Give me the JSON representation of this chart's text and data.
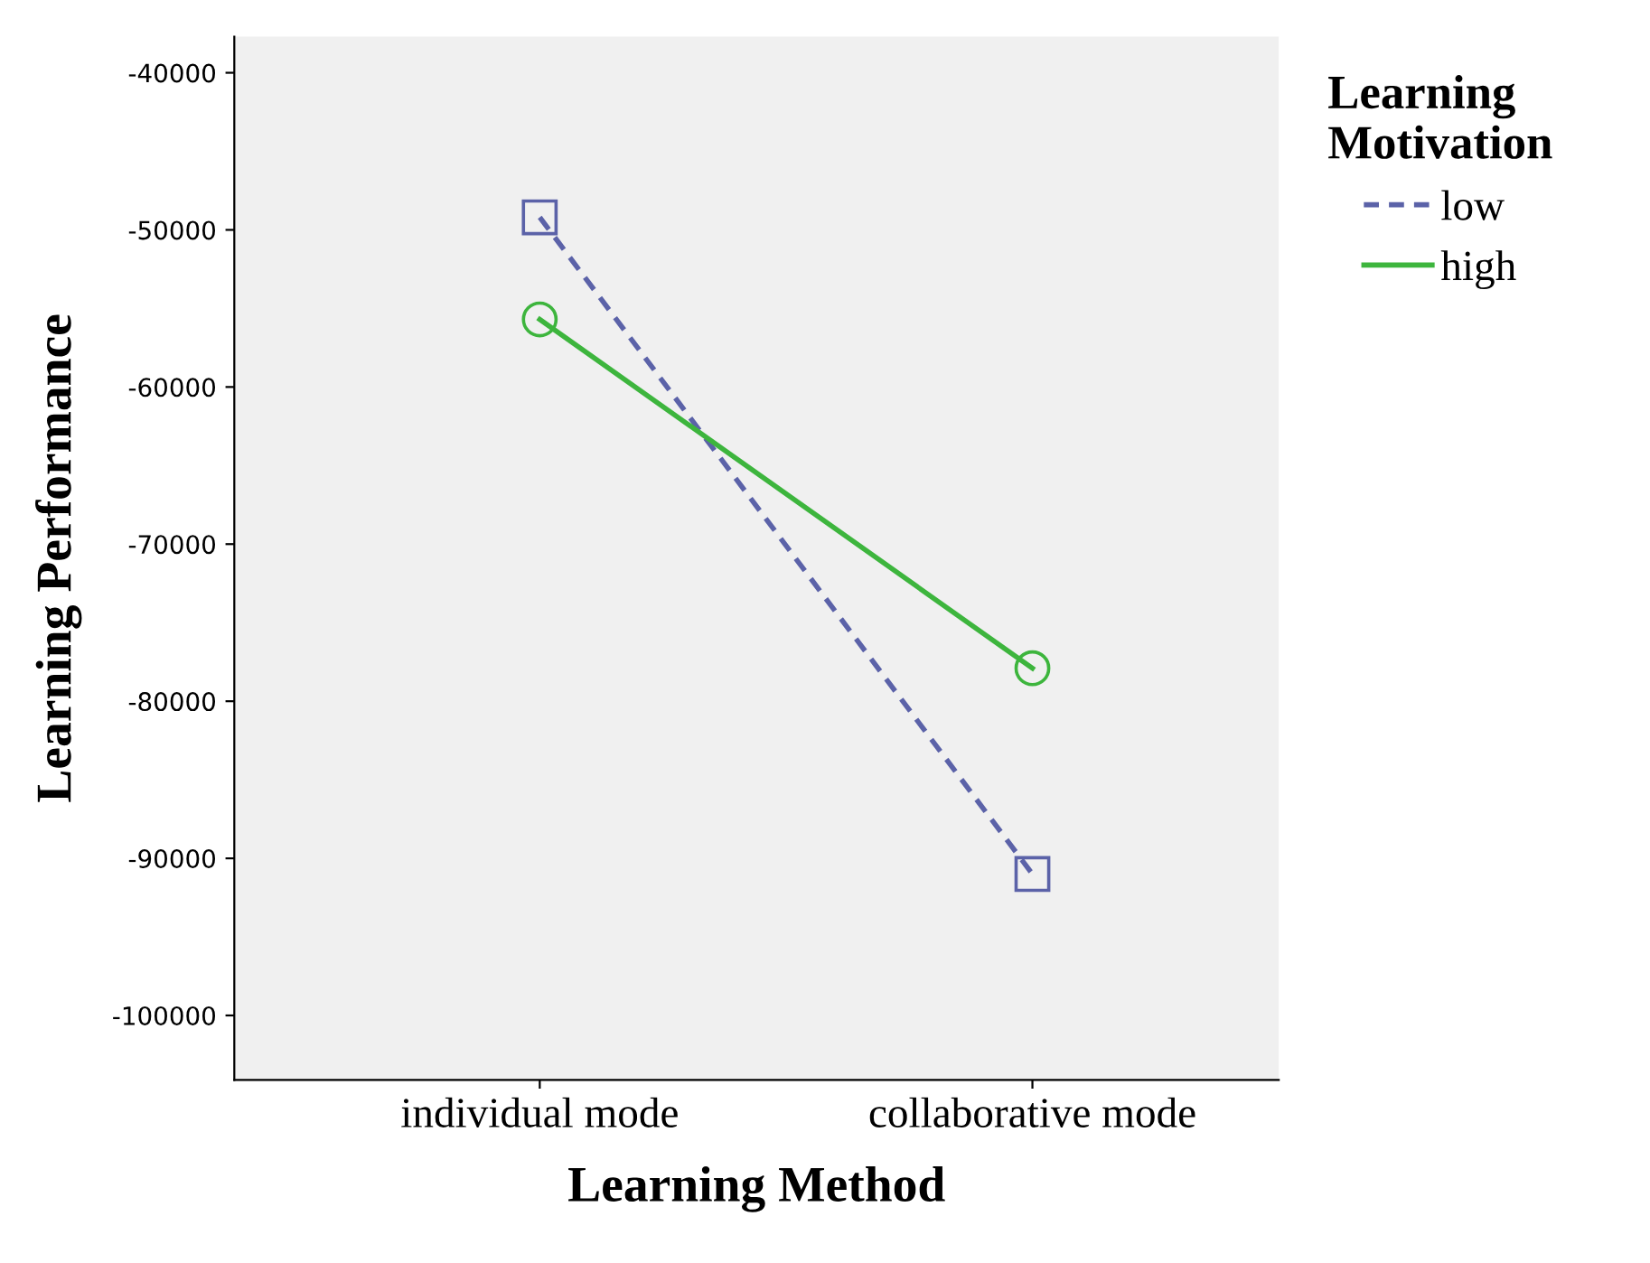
{
  "chart_data": {
    "type": "line",
    "xlabel": "Learning Method",
    "ylabel": "Learning Performance",
    "legend_title": "Learning\nMotivation",
    "categories": [
      "individual mode",
      "collaborative mode"
    ],
    "series": [
      {
        "name": "low",
        "color": "#5b62a8",
        "values": [
          -49200,
          -91000
        ],
        "marker": "square",
        "line_style": "dashed"
      },
      {
        "name": "high",
        "color": "#3db53d",
        "values": [
          -55700,
          -77900
        ],
        "marker": "circle",
        "line_style": "solid"
      }
    ],
    "ylim": [
      -104100,
      -37700
    ],
    "yticks": [
      -100000,
      -90000,
      -80000,
      -70000,
      -60000,
      -50000,
      -40000
    ],
    "grid": false,
    "legend": "right"
  }
}
